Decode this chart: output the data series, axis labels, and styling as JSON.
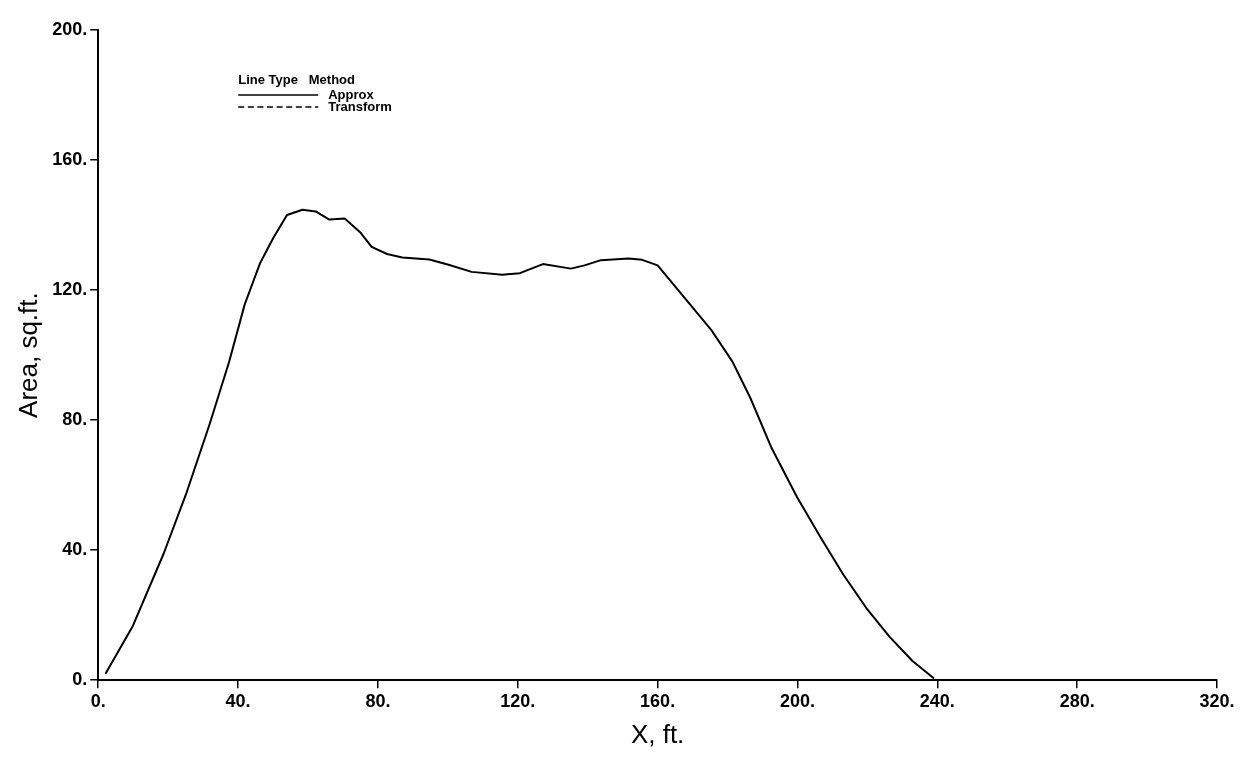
{
  "chart_data": {
    "type": "line",
    "xlabel": "X, ft.",
    "ylabel": "Area, sq.ft.",
    "xlim": [
      0,
      320
    ],
    "ylim": [
      0,
      200
    ],
    "xticks": [
      {
        "value": 0,
        "label": "0."
      },
      {
        "value": 40,
        "label": "40."
      },
      {
        "value": 80,
        "label": "80."
      },
      {
        "value": 120,
        "label": "120."
      },
      {
        "value": 160,
        "label": "160."
      },
      {
        "value": 200,
        "label": "200."
      },
      {
        "value": 240,
        "label": "240."
      },
      {
        "value": 280,
        "label": "280."
      },
      {
        "value": 320,
        "label": "320."
      }
    ],
    "yticks": [
      {
        "value": 0,
        "label": "0."
      },
      {
        "value": 40,
        "label": "40."
      },
      {
        "value": 80,
        "label": "80."
      },
      {
        "value": 120,
        "label": "120."
      },
      {
        "value": 160,
        "label": "160."
      },
      {
        "value": 200,
        "label": "200."
      }
    ],
    "grid": false,
    "legend": "top left",
    "legend_title": "Line Type   Method",
    "marker": "none",
    "series": [
      {
        "name": "Approx",
        "color": "#000000",
        "line_style": "solid",
        "x": [
          2.2,
          9.9,
          18.7,
          25.3,
          31.9,
          37.4,
          41.9,
          46.3,
          50.1,
          54,
          58.4,
          62.2,
          66.1,
          70.5,
          74.9,
          78.2,
          82.6,
          87,
          94.7,
          100.2,
          106.8,
          115.6,
          120.6,
          127.2,
          135.2,
          139.1,
          143.8,
          151.7,
          155.6,
          160,
          168.2,
          175.5,
          181.4,
          186.7,
          192.6,
          199.9,
          206.5,
          213.1,
          219.7,
          226.3,
          232.9,
          238.9
        ],
        "values": [
          2.2,
          16.7,
          38.9,
          57.8,
          78.9,
          97.8,
          115.6,
          128.3,
          136.1,
          143.1,
          144.7,
          144.2,
          141.7,
          142,
          137.8,
          133.3,
          131.1,
          130,
          129.4,
          127.8,
          125.6,
          124.7,
          125.2,
          128,
          126.6,
          127.6,
          129.2,
          129.7,
          129.3,
          127.6,
          117,
          107.5,
          98,
          86.4,
          71.4,
          56.3,
          44.1,
          32.5,
          22.2,
          13.4,
          5.9,
          0.7
        ]
      },
      {
        "name": "Transform",
        "color": "#000000",
        "line_style": "dashed"
      }
    ]
  }
}
